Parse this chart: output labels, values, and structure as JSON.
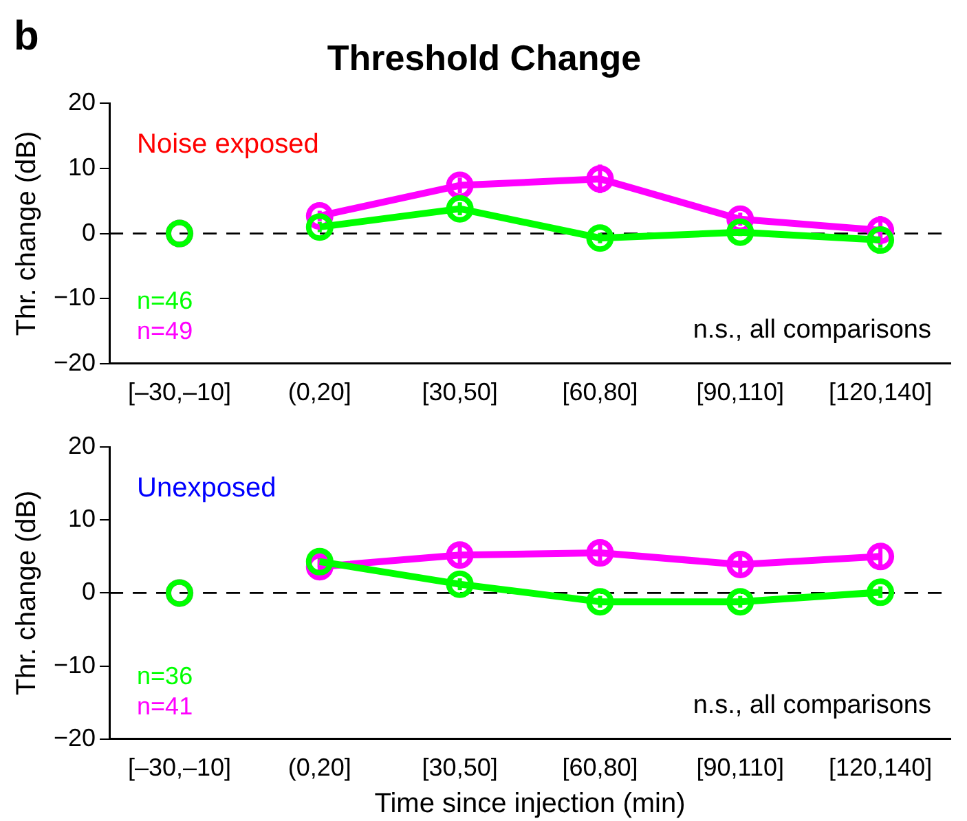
{
  "chart_data": [
    {
      "type": "line",
      "title": "Threshold Change",
      "ylabel": "Thr. change (dB)",
      "categories": [
        "[–30,–10]",
        "(0,20]",
        "[30,50]",
        "[60,80]",
        "[90,110]",
        "[120,140]"
      ],
      "series": [
        {
          "type": "scatter",
          "x": [
            "[–30,–10]"
          ],
          "values": [
            0
          ],
          "color": "#00ff00"
        },
        {
          "type": "scatter",
          "x": [
            "[–30,–10]"
          ],
          "values": [
            0
          ],
          "color": "#ff00ff"
        },
        {
          "name": "n=46",
          "color": "#00ff00",
          "values": [
            null,
            1,
            3.8,
            -0.7,
            0.2,
            -1
          ],
          "errors": [
            null,
            0.8,
            1,
            0.8,
            0.6,
            1.2
          ]
        },
        {
          "name": "n=49",
          "color": "#ff00ff",
          "values": [
            null,
            2.7,
            7.4,
            8.4,
            2.2,
            0.5
          ],
          "errors": [
            null,
            0.8,
            1.2,
            2.2,
            1,
            2.2
          ]
        }
      ],
      "ylim": [
        -20,
        20
      ],
      "yticks": [
        -20,
        -10,
        0,
        10,
        20
      ],
      "grid": false,
      "legend": false,
      "marker": "circle",
      "line_style": "solid",
      "ref_lines": [
        {
          "axis": "y",
          "value": 0,
          "line_style": "dashed",
          "color": "#000000"
        }
      ],
      "annotations": [
        "Noise exposed",
        "n.s., all comparisons",
        "b"
      ]
    },
    {
      "type": "line",
      "ylabel": "Thr. change (dB)",
      "xlabel": "Time since injection (min)",
      "categories": [
        "[–30,–10]",
        "(0,20]",
        "[30,50]",
        "[60,80]",
        "[90,110]",
        "[120,140]"
      ],
      "series": [
        {
          "type": "scatter",
          "x": [
            "[–30,–10]"
          ],
          "values": [
            0
          ],
          "color": "#00ff00"
        },
        {
          "type": "scatter",
          "x": [
            "[–30,–10]"
          ],
          "values": [
            0
          ],
          "color": "#ff00ff"
        },
        {
          "name": "n=36",
          "color": "#00ff00",
          "values": [
            null,
            4.3,
            1.2,
            -1.2,
            -1.2,
            0.1
          ],
          "errors": [
            null,
            0.8,
            0.8,
            0.8,
            0.8,
            0.8
          ]
        },
        {
          "name": "n=41",
          "color": "#ff00ff",
          "values": [
            null,
            3.6,
            5.2,
            5.5,
            3.9,
            5
          ],
          "errors": [
            null,
            1,
            1.4,
            1.4,
            1.4,
            1.6
          ]
        }
      ],
      "ylim": [
        -20,
        20
      ],
      "yticks": [
        -20,
        -10,
        0,
        10,
        20
      ],
      "grid": false,
      "legend": false,
      "marker": "circle",
      "line_style": "solid",
      "ref_lines": [
        {
          "axis": "y",
          "value": 0,
          "line_style": "dashed",
          "color": "#000000"
        }
      ],
      "annotations": [
        "Unexposed",
        "n.s., all comparisons"
      ]
    }
  ]
}
